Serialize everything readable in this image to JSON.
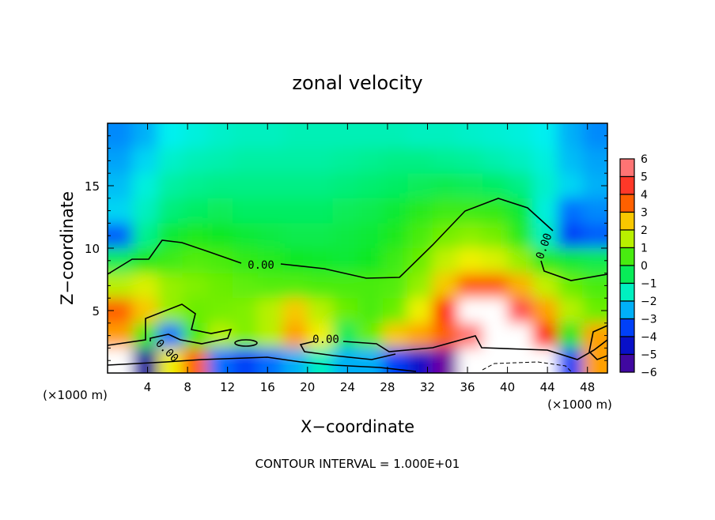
{
  "chart_data": {
    "type": "heatmap",
    "title": "zonal velocity",
    "xlabel": "X−coordinate",
    "ylabel": "Z−coordinate",
    "x_unit_left": "(×1000 m)",
    "x_unit_right": "(×1000 m)",
    "footer": "CONTOUR INTERVAL = 1.000E+01",
    "xlim": [
      0,
      50
    ],
    "ylim": [
      0,
      20
    ],
    "x_ticks": [
      4,
      8,
      12,
      16,
      20,
      24,
      28,
      32,
      36,
      40,
      44,
      48
    ],
    "x_tick_labels": [
      "4",
      "8",
      "12",
      "16",
      "20",
      "24",
      "28",
      "32",
      "36",
      "40",
      "44",
      "48"
    ],
    "y_ticks": [
      5,
      10,
      15
    ],
    "y_tick_labels": [
      "5",
      "10",
      "15"
    ],
    "colorbar": {
      "range": [
        -6,
        6
      ],
      "labels": [
        "6",
        "5",
        "4",
        "3",
        "2",
        "1",
        "0",
        "−1",
        "−2",
        "−3",
        "−4",
        "−5",
        "−6"
      ],
      "stops": [
        "#7000a0",
        "#1010a0",
        "#0010f0",
        "#0070ff",
        "#00f0f0",
        "#00f090",
        "#10e820",
        "#80f000",
        "#f0f000",
        "#ffa000",
        "#ff2000",
        "#ff5050",
        "#ff9898"
      ],
      "out_of_range_color": "#ffffff"
    },
    "contour_labels": [
      "0.00",
      "0.00",
      "0.00",
      "0.00"
    ],
    "grid_x_centers": [
      1.25,
      3.75,
      6.25,
      8.75,
      11.25,
      13.75,
      16.25,
      18.75,
      21.25,
      23.75,
      26.25,
      28.75,
      31.25,
      33.75,
      36.25,
      38.75,
      41.25,
      43.75,
      46.25,
      48.75
    ],
    "grid_z_centers": [
      19,
      17,
      15,
      13,
      11,
      9,
      7,
      5,
      3,
      1
    ],
    "values": [
      [
        -2.8,
        -2.5,
        -2.0,
        -1.8,
        -1.6,
        -1.5,
        -1.5,
        -1.4,
        -1.4,
        -1.4,
        -1.4,
        -1.4,
        -1.5,
        -1.5,
        -1.6,
        -1.7,
        -1.8,
        -2.0,
        -2.5,
        -2.8
      ],
      [
        -2.6,
        -2.2,
        -1.6,
        -1.4,
        -1.3,
        -1.2,
        -1.2,
        -1.2,
        -1.2,
        -1.1,
        -1.0,
        -0.9,
        -0.9,
        -1.0,
        -1.1,
        -1.3,
        -1.5,
        -1.8,
        -2.4,
        -2.6
      ],
      [
        -2.4,
        -1.8,
        -1.2,
        -1.0,
        -0.9,
        -0.9,
        -0.9,
        -0.9,
        -0.9,
        -0.8,
        -0.7,
        -0.6,
        -0.5,
        -0.4,
        -0.5,
        -0.6,
        -0.9,
        -1.6,
        -2.2,
        -2.5
      ],
      [
        -2.2,
        -1.5,
        -0.8,
        -0.6,
        -0.5,
        -0.6,
        -0.6,
        -0.6,
        -0.6,
        -0.5,
        -0.4,
        -0.2,
        0.2,
        0.4,
        0.4,
        0.3,
        -0.2,
        -1.8,
        -3.0,
        -2.8
      ],
      [
        -3.2,
        -1.0,
        -0.2,
        0.1,
        0.0,
        -0.2,
        -0.3,
        -0.4,
        -0.4,
        -0.3,
        -0.2,
        0.1,
        0.5,
        0.9,
        1.1,
        0.9,
        0.2,
        -1.5,
        -3.5,
        -3.2
      ],
      [
        -0.5,
        0.1,
        0.4,
        0.6,
        0.5,
        0.3,
        0.2,
        0.0,
        -0.1,
        -0.2,
        0.0,
        0.4,
        0.8,
        1.6,
        2.0,
        1.8,
        1.2,
        0.2,
        -0.2,
        -0.4
      ],
      [
        1.5,
        1.8,
        1.2,
        1.0,
        0.8,
        0.7,
        0.6,
        0.6,
        0.5,
        0.5,
        0.5,
        0.6,
        1.2,
        2.5,
        3.5,
        3.5,
        2.8,
        1.6,
        0.8,
        0.5
      ],
      [
        3.5,
        2.5,
        1.2,
        0.8,
        0.9,
        1.0,
        1.5,
        2.5,
        1.5,
        0.8,
        0.5,
        0.8,
        2.0,
        4.0,
        6.5,
        6.5,
        5.0,
        3.0,
        1.5,
        0.8
      ],
      [
        3.0,
        0.5,
        -3.0,
        0.5,
        1.5,
        1.0,
        1.5,
        3.0,
        2.0,
        -0.5,
        0.8,
        2.5,
        3.0,
        3.5,
        5.5,
        6.8,
        6.5,
        4.0,
        0.0,
        3.0
      ],
      [
        6.5,
        -5.0,
        2.0,
        3.5,
        -3.0,
        -3.5,
        -3.0,
        -2.5,
        -1.5,
        -2.5,
        -2.5,
        -3.5,
        -4.5,
        -6.0,
        -7.0,
        -7.0,
        -7.0,
        -6.5,
        -3.5,
        3.0
      ]
    ]
  }
}
